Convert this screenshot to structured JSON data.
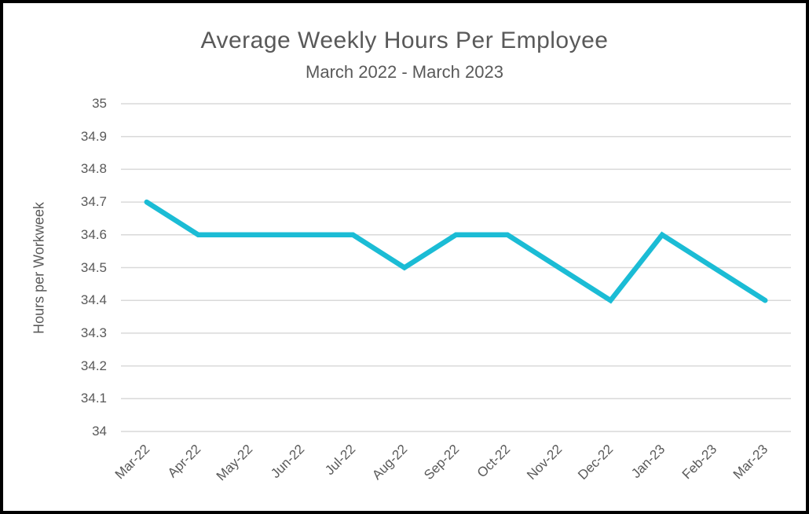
{
  "chart_data": {
    "type": "line",
    "title": "Average Weekly Hours Per Employee",
    "subtitle": "March 2022 - March 2023",
    "xlabel": "",
    "ylabel": "Hours per Workweek",
    "categories": [
      "Mar-22",
      "Apr-22",
      "May-22",
      "Jun-22",
      "Jul-22",
      "Aug-22",
      "Sep-22",
      "Oct-22",
      "Nov-22",
      "Dec-22",
      "Jan-23",
      "Feb-23",
      "Mar-23"
    ],
    "values": [
      34.7,
      34.6,
      34.6,
      34.6,
      34.6,
      34.5,
      34.6,
      34.6,
      34.5,
      34.4,
      34.6,
      34.5,
      34.4
    ],
    "ylim": [
      34,
      35
    ],
    "ytick_labels": [
      "35",
      "34.9",
      "34.8",
      "34.7",
      "34.6",
      "34.5",
      "34.4",
      "34.3",
      "34.2",
      "34.1",
      "34"
    ],
    "grid": true,
    "legend": "none",
    "colors": {
      "line": "#1bbcd5",
      "gridline": "#d9d9d9",
      "text": "#595959",
      "frame_border": "#000000",
      "background": "#ffffff"
    }
  }
}
